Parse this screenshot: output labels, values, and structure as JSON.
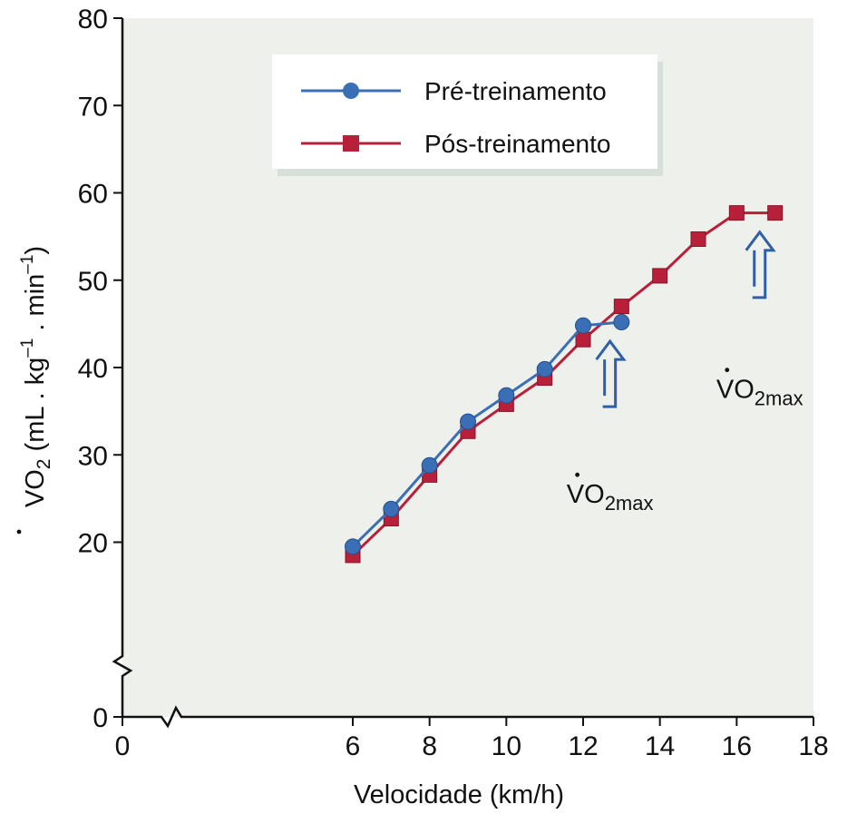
{
  "chart_data": {
    "type": "line",
    "title": "",
    "xlabel": "Velocidade (km/h)",
    "ylabel": {
      "prefix": "V",
      "sub": "2",
      "text": "O",
      "units_open": " (mL . kg",
      "units_exp1": "–1",
      "units_mid": " . min",
      "units_exp2": "–1",
      "units_close": ")"
    },
    "xlim": [
      0,
      18
    ],
    "ylim": [
      0,
      80
    ],
    "x_ticks": [
      0,
      6,
      8,
      10,
      12,
      14,
      16,
      18
    ],
    "y_ticks": [
      0,
      20,
      30,
      40,
      50,
      60,
      70,
      80
    ],
    "axis_break": true,
    "grid": false,
    "legend_position": "top-center",
    "series": [
      {
        "name": "Pré-treinamento",
        "marker": "circle",
        "color": "#3a6fb6",
        "x": [
          6,
          7,
          8,
          9,
          10,
          11,
          12,
          13
        ],
        "y": [
          19.5,
          23.8,
          28.8,
          33.8,
          36.8,
          39.8,
          44.8,
          45.2
        ]
      },
      {
        "name": "Pós-treinamento",
        "marker": "square",
        "color": "#b8203a",
        "x": [
          6,
          7,
          8,
          9,
          10,
          11,
          12,
          13,
          14,
          15,
          16,
          17
        ],
        "y": [
          18.5,
          22.7,
          27.7,
          32.7,
          35.8,
          38.8,
          43.2,
          47.0,
          50.5,
          54.7,
          57.7,
          57.7
        ]
      }
    ],
    "annotations": [
      {
        "name": "pre-vo2max",
        "target": [
          12.7,
          43
        ],
        "label_prefix": "V",
        "label_main": "O",
        "label_sub": "2max",
        "label_at": [
          12.7,
          24.5
        ]
      },
      {
        "name": "post-vo2max",
        "target": [
          16.6,
          55.5
        ],
        "label_prefix": "V",
        "label_main": "O",
        "label_sub": "2max",
        "label_at": [
          16.6,
          36.5
        ]
      }
    ]
  },
  "colors": {
    "plot_background": "#eef0ec",
    "axis": "#111111",
    "arrow": "#2f5fa6"
  }
}
